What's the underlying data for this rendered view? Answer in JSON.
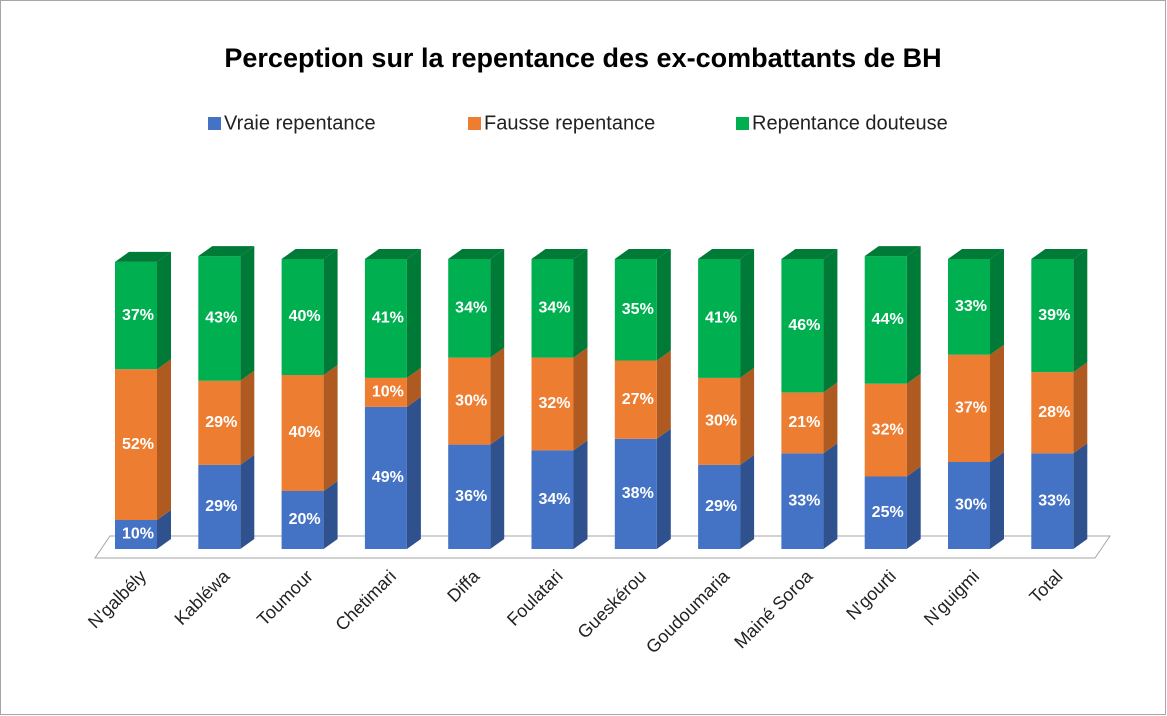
{
  "chart_data": {
    "type": "bar3d_stacked",
    "title": "Perception sur la repentance des ex-combattants de BH",
    "categories": [
      "N'galbély",
      "Kabléwa",
      "Toumour",
      "Chetimari",
      "Diffa",
      "Foulatari",
      "Gueskérou",
      "Goudoumaria",
      "Mainé Soroa",
      "N'gourti",
      "N'guigmi",
      "Total"
    ],
    "series": [
      {
        "name": "Vraie repentance",
        "color": "#4472c4",
        "side": "#2f528f",
        "values": [
          10,
          29,
          20,
          49,
          36,
          34,
          38,
          29,
          33,
          25,
          30,
          33
        ],
        "value_labels": [
          "10%",
          "29%",
          "20%",
          "49%",
          "36%",
          "34%",
          "38%",
          "29%",
          "33%",
          "25%",
          "30%",
          "33%"
        ]
      },
      {
        "name": "Fausse repentance",
        "color": "#ed7d31",
        "side": "#ae5a21",
        "values": [
          52,
          29,
          40,
          10,
          30,
          32,
          27,
          30,
          21,
          32,
          37,
          28
        ],
        "value_labels": [
          "52%",
          "29%",
          "40%",
          "10%",
          "30%",
          "32%",
          "27%",
          "30%",
          "21%",
          "32%",
          "37%",
          "28%"
        ]
      },
      {
        "name": "Repentance douteuse",
        "color": "#00b050",
        "side": "#007a37",
        "values": [
          37,
          43,
          40,
          41,
          34,
          34,
          35,
          41,
          46,
          44,
          33,
          39
        ],
        "value_labels": [
          "37%",
          "43%",
          "40%",
          "41%",
          "34%",
          "34%",
          "35%",
          "41%",
          "46%",
          "44%",
          "33%",
          "39%"
        ]
      }
    ],
    "legend": "top"
  }
}
